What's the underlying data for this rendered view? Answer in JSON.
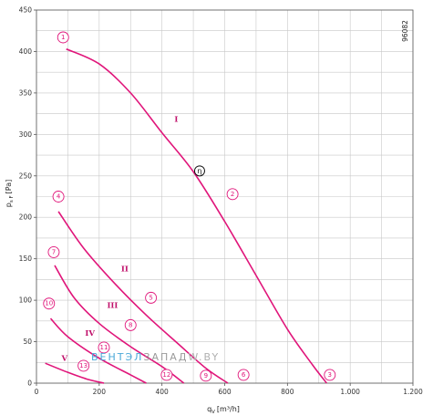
{
  "chart_data": {
    "type": "line",
    "xlabel": "q",
    "xlabel_sub": "V",
    "xlabel_unit": "[m³/h]",
    "ylabel": "p",
    "ylabel_sub": "s F",
    "ylabel_unit": "[Pa]",
    "xlim": [
      0,
      1200
    ],
    "ylim": [
      0,
      450
    ],
    "xticks": [
      "0",
      "200",
      "400",
      "600",
      "800",
      "1.000",
      "1.200"
    ],
    "yticks": [
      "0",
      "50",
      "100",
      "150",
      "200",
      "250",
      "300",
      "350",
      "400",
      "450"
    ],
    "grid": true,
    "code": "96082",
    "eta_label": "η",
    "eta_point": {
      "x": 520,
      "y": 256
    },
    "series": [
      {
        "name": "I",
        "label_at": {
          "x": 440,
          "y": 315
        },
        "points": [
          [
            95,
            403
          ],
          [
            200,
            385
          ],
          [
            300,
            350
          ],
          [
            400,
            302
          ],
          [
            500,
            255
          ],
          [
            600,
            195
          ],
          [
            700,
            130
          ],
          [
            800,
            65
          ],
          [
            880,
            22
          ],
          [
            925,
            0
          ]
        ]
      },
      {
        "name": "II",
        "label_at": {
          "x": 270,
          "y": 135
        },
        "points": [
          [
            70,
            207
          ],
          [
            150,
            163
          ],
          [
            250,
            120
          ],
          [
            350,
            82
          ],
          [
            450,
            48
          ],
          [
            540,
            18
          ],
          [
            610,
            0
          ]
        ]
      },
      {
        "name": "III",
        "label_at": {
          "x": 225,
          "y": 91
        },
        "points": [
          [
            58,
            142
          ],
          [
            120,
            103
          ],
          [
            200,
            72
          ],
          [
            300,
            44
          ],
          [
            400,
            20
          ],
          [
            470,
            0
          ]
        ]
      },
      {
        "name": "IV",
        "label_at": {
          "x": 155,
          "y": 57
        },
        "points": [
          [
            45,
            78
          ],
          [
            100,
            56
          ],
          [
            200,
            30
          ],
          [
            300,
            10
          ],
          [
            350,
            0
          ]
        ]
      },
      {
        "name": "V",
        "label_at": {
          "x": 80,
          "y": 27
        },
        "points": [
          [
            28,
            24
          ],
          [
            100,
            13
          ],
          [
            160,
            5
          ],
          [
            215,
            0
          ]
        ]
      }
    ],
    "markers": [
      {
        "label": "1",
        "x": 85,
        "y": 417
      },
      {
        "label": "2",
        "x": 625,
        "y": 228
      },
      {
        "label": "3",
        "x": 935,
        "y": 10
      },
      {
        "label": "4",
        "x": 70,
        "y": 225
      },
      {
        "label": "5",
        "x": 365,
        "y": 103
      },
      {
        "label": "6",
        "x": 660,
        "y": 10
      },
      {
        "label": "7",
        "x": 55,
        "y": 158
      },
      {
        "label": "8",
        "x": 300,
        "y": 70
      },
      {
        "label": "9",
        "x": 540,
        "y": 9
      },
      {
        "label": "10",
        "x": 40,
        "y": 96
      },
      {
        "label": "11",
        "x": 215,
        "y": 43
      },
      {
        "label": "12",
        "x": 415,
        "y": 10
      },
      {
        "label": "13",
        "x": 150,
        "y": 21
      }
    ]
  },
  "watermark": {
    "part1": "ВЕНТ",
    "part2": "ЭЛ",
    "part3": "ЗАПАД",
    "part4": "W.BY"
  },
  "colors": {
    "curve": "#e0157a",
    "grid": "#c8c8c8",
    "wm_blue": "#4aa8d8",
    "wm_gray": "#9a9a9a"
  }
}
